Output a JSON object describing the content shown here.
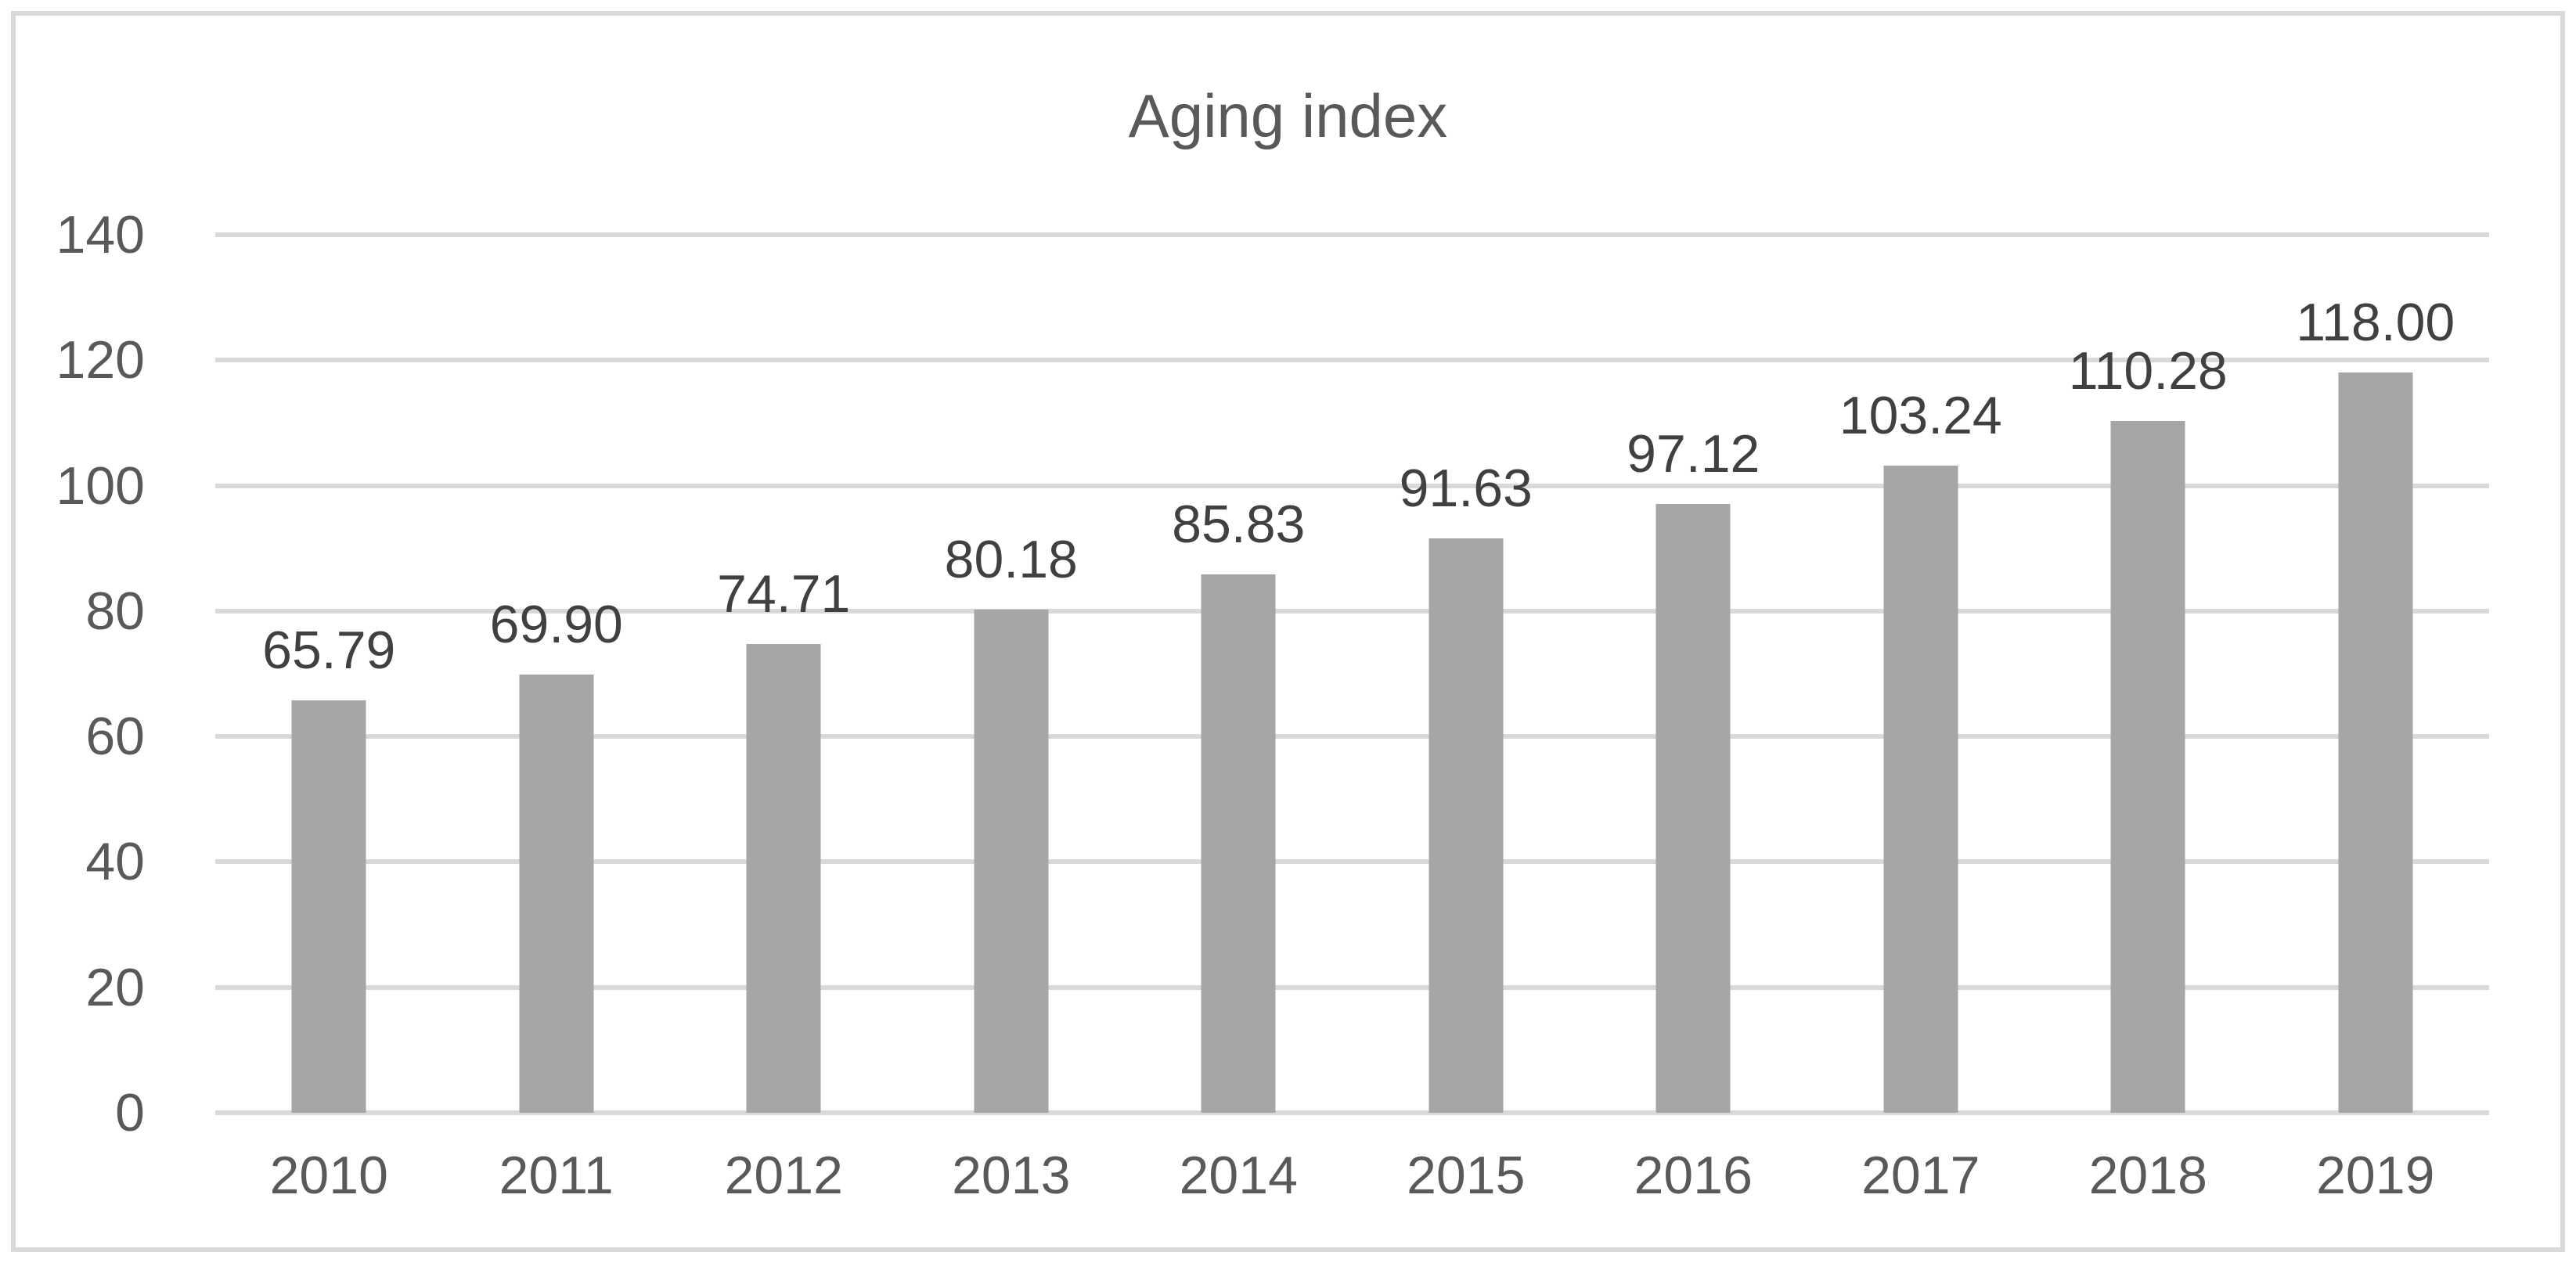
{
  "chart_data": {
    "type": "bar",
    "title": "Aging index",
    "categories": [
      "2010",
      "2011",
      "2012",
      "2013",
      "2014",
      "2015",
      "2016",
      "2017",
      "2018",
      "2019"
    ],
    "values": [
      65.79,
      69.9,
      74.71,
      80.18,
      85.83,
      91.63,
      97.12,
      103.24,
      110.28,
      118.0
    ],
    "data_labels": [
      "65.79",
      "69.90",
      "74.71",
      "80.18",
      "85.83",
      "91.63",
      "97.12",
      "103.24",
      "110.28",
      "118.00"
    ],
    "xlabel": "",
    "ylabel": "",
    "ylim": [
      0,
      140
    ],
    "yticks": [
      0,
      20,
      40,
      60,
      80,
      100,
      120,
      140
    ],
    "ytick_labels": [
      "0",
      "20",
      "40",
      "60",
      "80",
      "100",
      "120",
      "140"
    ],
    "grid": "horizontal",
    "legend": "none",
    "colors": {
      "bar": "#a6a6a6",
      "gridline": "#d9d9d9",
      "frame_border": "#d9d9d9",
      "title_text": "#595959",
      "axis_text": "#595959",
      "data_label_text": "#404040",
      "background": "#ffffff"
    }
  }
}
